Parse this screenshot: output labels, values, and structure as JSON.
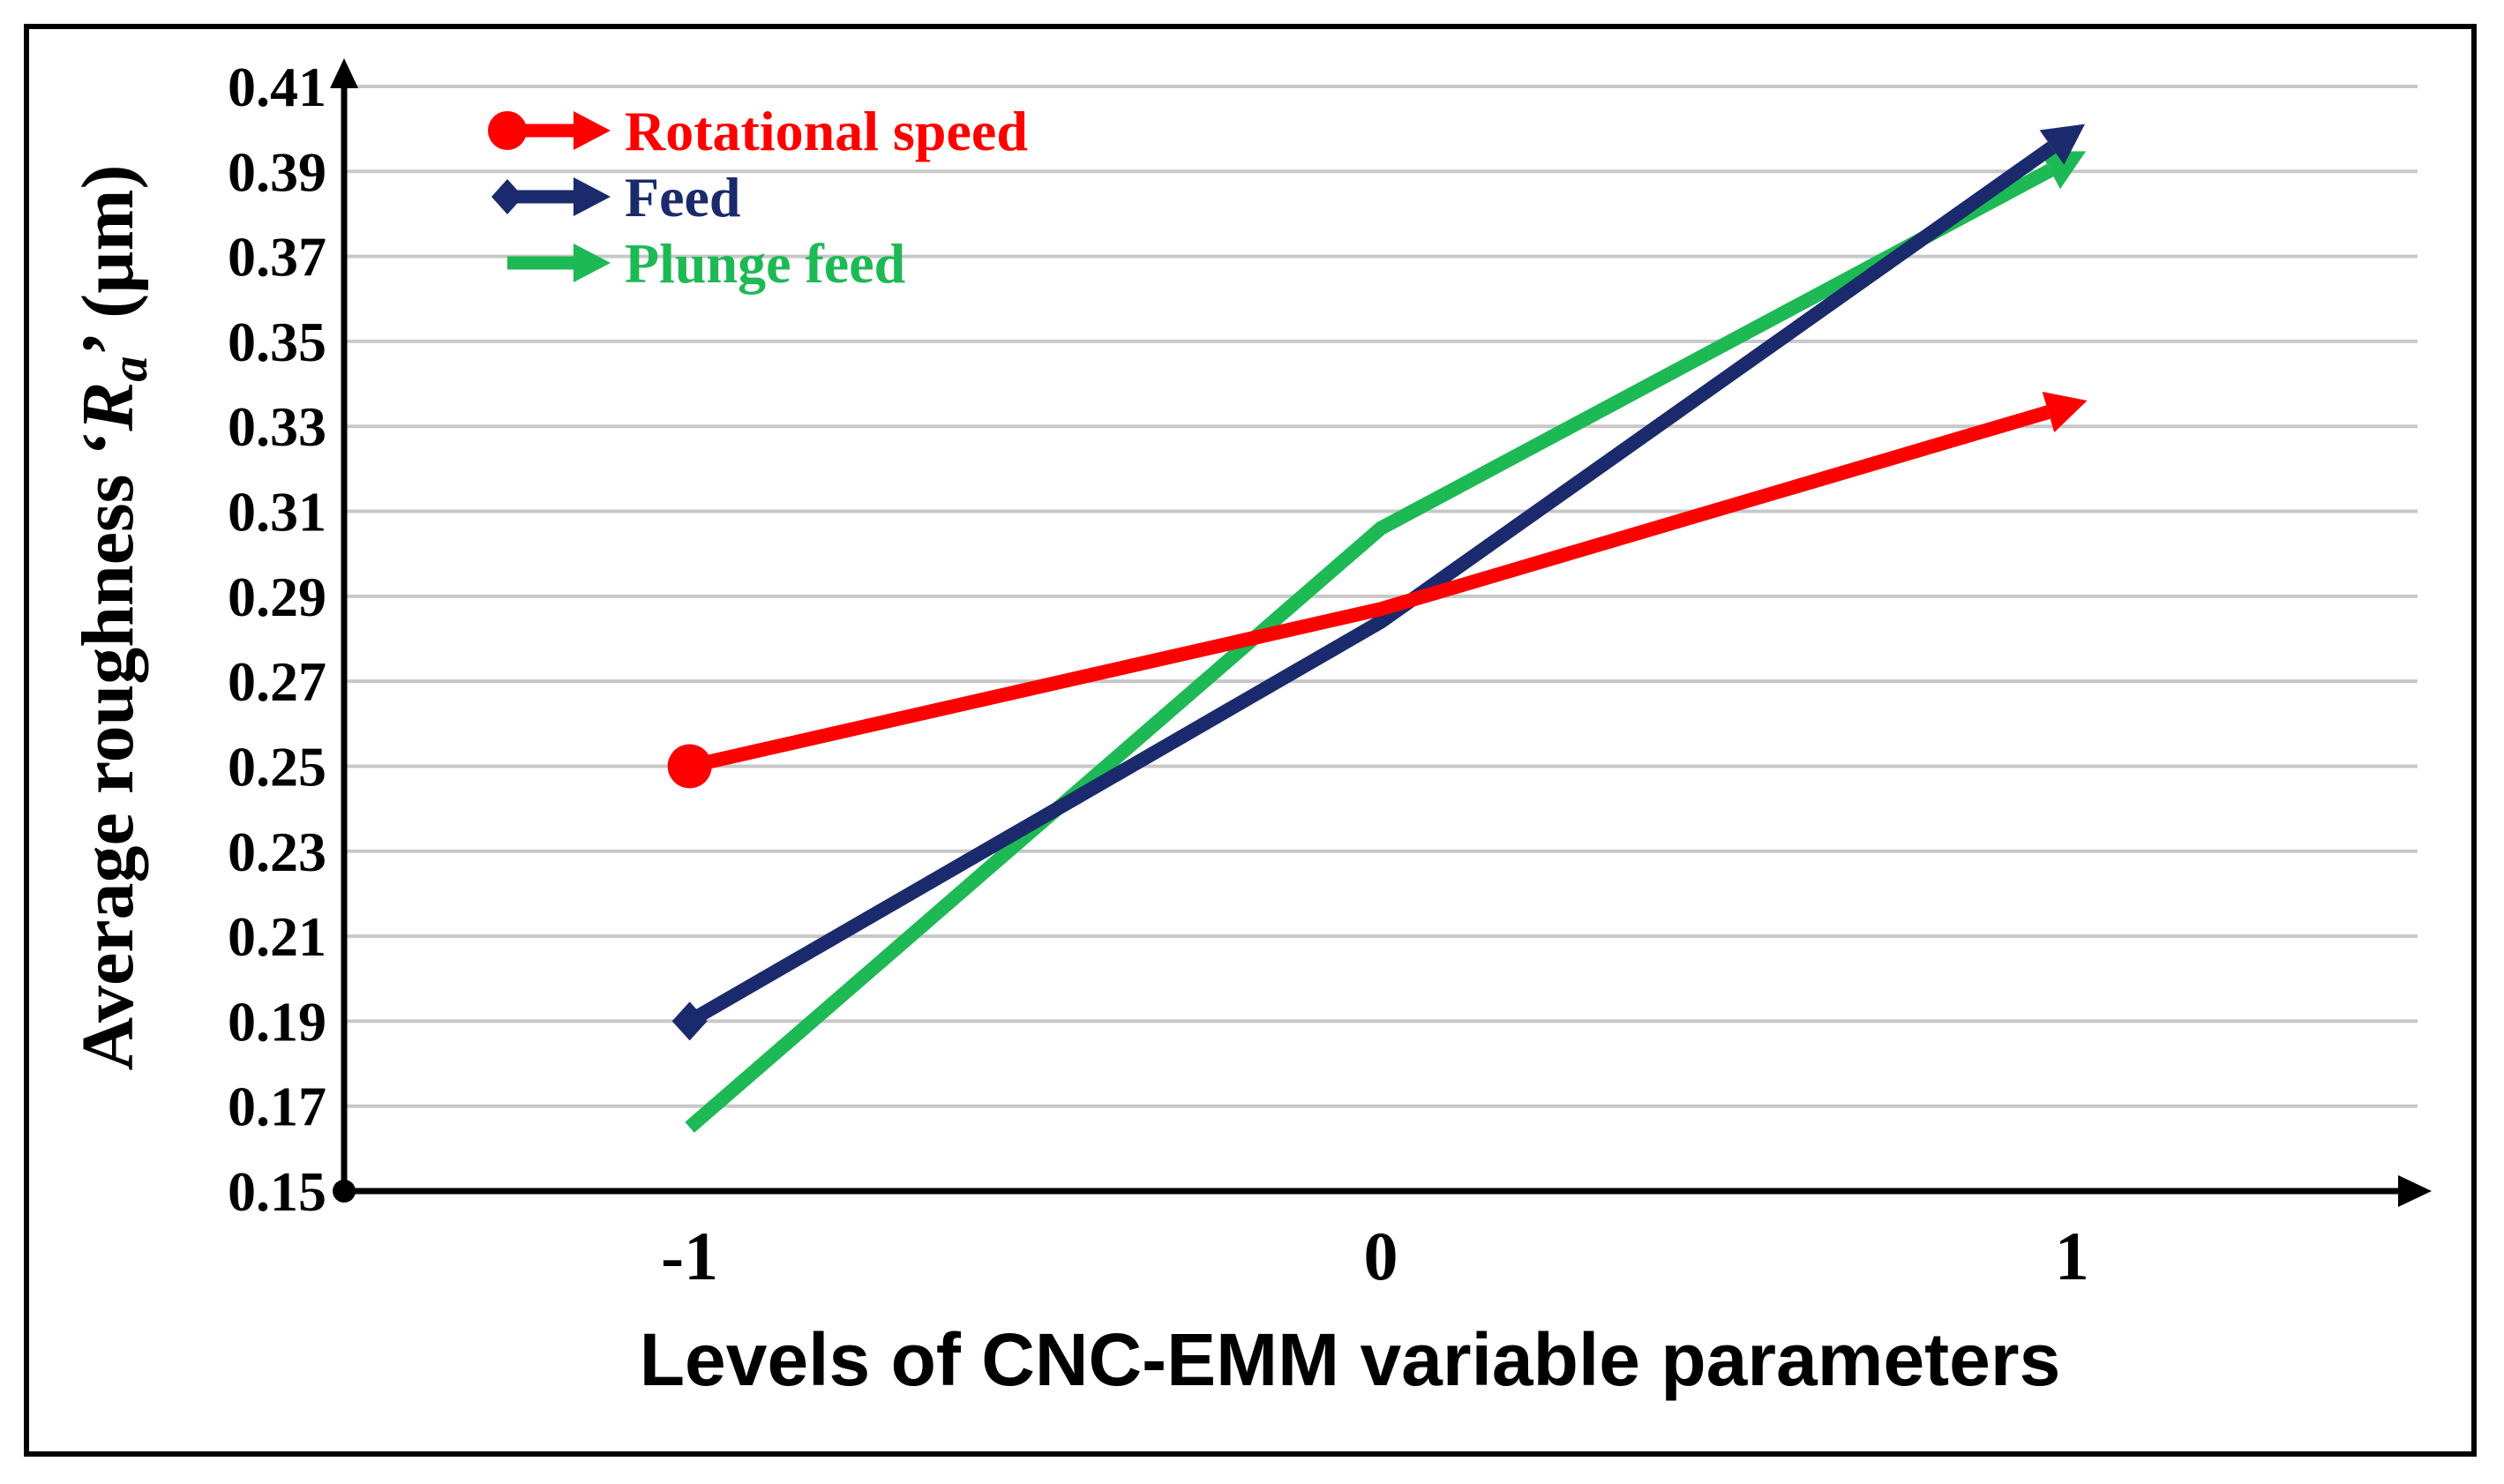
{
  "chart_data": {
    "type": "line",
    "categories": [
      "-1",
      "0",
      "1"
    ],
    "x": [
      -1,
      0,
      1
    ],
    "xlabel": "Levels of CNC-EMM variable parameters",
    "ylabel_prefix": "Average roughness ‘",
    "ylabel_symbol": "R",
    "ylabel_subscript": "a",
    "ylabel_suffix": "’ (µm)",
    "ylim": [
      0.15,
      0.41
    ],
    "yticks": [
      "0.15",
      "0.17",
      "0.19",
      "0.21",
      "0.23",
      "0.25",
      "0.27",
      "0.29",
      "0.31",
      "0.33",
      "0.35",
      "0.37",
      "0.39",
      "0.41"
    ],
    "grid": true,
    "legend_position": "top-left",
    "series": [
      {
        "name": "Rotational speed",
        "color": "#ff0000",
        "marker": "circle",
        "values": [
          0.25,
          0.287,
          0.335
        ]
      },
      {
        "name": "Feed",
        "color": "#1a2a6c",
        "marker": "diamond",
        "values": [
          0.19,
          0.284,
          0.399
        ]
      },
      {
        "name": "Plunge feed",
        "color": "#1db954",
        "marker": "none",
        "values": [
          0.165,
          0.306,
          0.393
        ]
      }
    ]
  }
}
